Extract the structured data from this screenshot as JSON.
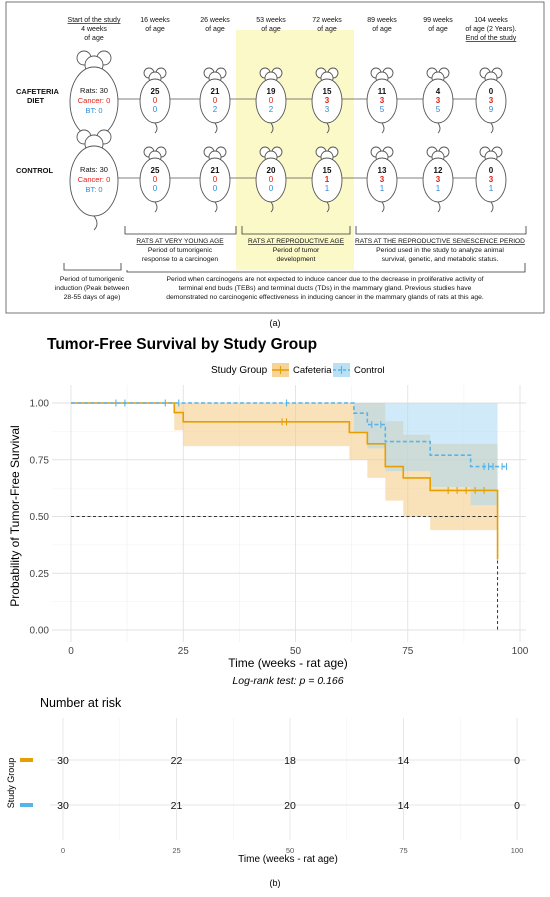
{
  "panel_a": {
    "caption": "(a)",
    "timeline": [
      {
        "l1": "Start of the study",
        "l2": "4 weeks",
        "l3": "of age",
        "u1": true,
        "u3": false
      },
      {
        "l1": "16 weeks",
        "l2": "of age",
        "l3": "",
        "u1": false,
        "u3": false
      },
      {
        "l1": "26 weeks",
        "l2": "of age",
        "l3": "",
        "u1": false,
        "u3": false
      },
      {
        "l1": "53 weeks",
        "l2": "of age",
        "l3": "",
        "u1": false,
        "u3": false
      },
      {
        "l1": "72 weeks",
        "l2": "of age",
        "l3": "",
        "u1": false,
        "u3": false
      },
      {
        "l1": "89 weeks",
        "l2": "of age",
        "l3": "",
        "u1": false,
        "u3": false
      },
      {
        "l1": "99 weeks",
        "l2": "of age",
        "l3": "",
        "u1": false,
        "u3": false
      },
      {
        "l1": "104 weeks",
        "l2": "of age (2 Years).",
        "l3": "End of the study",
        "u1": false,
        "u3": true
      }
    ],
    "groups": [
      {
        "label_l1": "CAFETERIA",
        "label_l2": "DIET",
        "start": {
          "rats": "Rats: 30",
          "cancer": "Cancer: 0",
          "bt": "BT: 0"
        },
        "points": [
          {
            "rats": "25",
            "cancer": "0",
            "bt": "0"
          },
          {
            "rats": "21",
            "cancer": "0",
            "bt": "2"
          },
          {
            "rats": "19",
            "cancer": "0",
            "bt": "2"
          },
          {
            "rats": "15",
            "cancer": "3",
            "bt": "3"
          },
          {
            "rats": "11",
            "cancer": "3",
            "bt": "5"
          },
          {
            "rats": "4",
            "cancer": "3",
            "bt": "5"
          },
          {
            "rats": "0",
            "cancer": "3",
            "bt": "9"
          }
        ]
      },
      {
        "label_l1": "CONTROL",
        "label_l2": "",
        "start": {
          "rats": "Rats: 30",
          "cancer": "Cancer: 0",
          "bt": "BT: 0"
        },
        "points": [
          {
            "rats": "25",
            "cancer": "0",
            "bt": "0"
          },
          {
            "rats": "21",
            "cancer": "0",
            "bt": "0"
          },
          {
            "rats": "20",
            "cancer": "0",
            "bt": "0"
          },
          {
            "rats": "15",
            "cancer": "1",
            "bt": "1"
          },
          {
            "rats": "13",
            "cancer": "3",
            "bt": "1"
          },
          {
            "rats": "12",
            "cancer": "3",
            "bt": "1"
          },
          {
            "rats": "0",
            "cancer": "3",
            "bt": "1"
          }
        ]
      }
    ],
    "periods": [
      {
        "title": "RATS AT VERY YOUNG AGE",
        "l1": "Period of tumorigenic",
        "l2": "response to a carcinogen"
      },
      {
        "title": "RATS AT REPRODUCTIVE AGE",
        "l1": "Period of tumor",
        "l2": "development"
      },
      {
        "title": "RATS AT THE REPRODUCTIVE SENESCENCE PERIOD",
        "l1": "Period used in the study to analyze animal",
        "l2": "survival, genetic, and metabolic status."
      }
    ],
    "notes": {
      "left": [
        "Period of tumorigenic",
        "induction (Peak between",
        "28-55 days of age)"
      ],
      "right": [
        "Period when carcinogens are not expected to induce cancer due to the decrease in proliferative activity of",
        "terminal end buds (TEBs) and terminal ducts (TDs) in the mammary gland. Previous studies have",
        "demonstrated no carcinogenic effectiveness in inducing cancer in the mammary glands of rats at this age."
      ]
    }
  },
  "chart_data": [
    {
      "type": "line",
      "title": "Tumor-Free Survival by Study Group",
      "xlabel": "Time (weeks - rat age)",
      "ylabel": "Probability of Tumor-Free Survival",
      "xlim": [
        0,
        100
      ],
      "ylim": [
        0,
        1
      ],
      "xticks": [
        "0",
        "25",
        "50",
        "75",
        "100"
      ],
      "yticks": [
        "0.00",
        "0.25",
        "0.50",
        "0.75",
        "1.00"
      ],
      "legend_title": "Study Group",
      "legend_position": "top",
      "annotation": "Log-rank test: p = 0.166",
      "median_line": 0.5,
      "series": [
        {
          "name": "Cafeteria",
          "color": "#E69F00",
          "band_color": "#F4C97F",
          "steps": [
            [
              0,
              1
            ],
            [
              23,
              1
            ],
            [
              23,
              0.958
            ],
            [
              25,
              0.958
            ],
            [
              25,
              0.917
            ],
            [
              62,
              0.917
            ],
            [
              62,
              0.87
            ],
            [
              66,
              0.87
            ],
            [
              66,
              0.82
            ],
            [
              70,
              0.82
            ],
            [
              70,
              0.72
            ],
            [
              74,
              0.72
            ],
            [
              74,
              0.67
            ],
            [
              80,
              0.67
            ],
            [
              80,
              0.615
            ],
            [
              95,
              0.615
            ],
            [
              95,
              0.31
            ]
          ],
          "upper": [
            [
              0,
              1
            ],
            [
              23,
              1
            ],
            [
              23,
              1
            ],
            [
              25,
              1
            ],
            [
              25,
              1
            ],
            [
              62,
              1
            ],
            [
              62,
              1
            ],
            [
              70,
              1
            ],
            [
              70,
              0.92
            ],
            [
              74,
              0.92
            ],
            [
              74,
              0.86
            ],
            [
              80,
              0.86
            ],
            [
              80,
              0.82
            ],
            [
              95,
              0.82
            ],
            [
              95,
              0.8
            ]
          ],
          "lower": [
            [
              0,
              1
            ],
            [
              23,
              1
            ],
            [
              23,
              0.88
            ],
            [
              25,
              0.88
            ],
            [
              25,
              0.81
            ],
            [
              62,
              0.81
            ],
            [
              62,
              0.75
            ],
            [
              66,
              0.75
            ],
            [
              66,
              0.67
            ],
            [
              70,
              0.67
            ],
            [
              70,
              0.57
            ],
            [
              74,
              0.57
            ],
            [
              74,
              0.5
            ],
            [
              80,
              0.5
            ],
            [
              80,
              0.44
            ],
            [
              95,
              0.44
            ],
            [
              95,
              0.31
            ]
          ],
          "censors": [
            [
              47,
              0.917
            ],
            [
              48,
              0.917
            ],
            [
              84,
              0.615
            ],
            [
              86,
              0.615
            ],
            [
              88,
              0.615
            ],
            [
              90,
              0.615
            ],
            [
              92,
              0.615
            ]
          ]
        },
        {
          "name": "Control",
          "color": "#56B4E9",
          "band_color": "#A9D8F4",
          "steps": [
            [
              0,
              1
            ],
            [
              63,
              1
            ],
            [
              63,
              0.955
            ],
            [
              66,
              0.955
            ],
            [
              66,
              0.905
            ],
            [
              70,
              0.905
            ],
            [
              70,
              0.83
            ],
            [
              80,
              0.83
            ],
            [
              80,
              0.77
            ],
            [
              89,
              0.77
            ],
            [
              89,
              0.72
            ],
            [
              97,
              0.72
            ]
          ],
          "upper": [
            [
              0,
              1
            ],
            [
              63,
              1
            ],
            [
              63,
              1
            ],
            [
              95,
              1
            ],
            [
              95,
              0.965
            ]
          ],
          "lower": [
            [
              0,
              1
            ],
            [
              63,
              1
            ],
            [
              63,
              0.87
            ],
            [
              66,
              0.87
            ],
            [
              66,
              0.8
            ],
            [
              70,
              0.8
            ],
            [
              70,
              0.7
            ],
            [
              80,
              0.7
            ],
            [
              80,
              0.63
            ],
            [
              89,
              0.63
            ],
            [
              89,
              0.55
            ],
            [
              95,
              0.55
            ]
          ],
          "censors": [
            [
              10,
              1
            ],
            [
              12,
              1
            ],
            [
              21,
              1
            ],
            [
              24,
              1
            ],
            [
              48,
              1
            ],
            [
              67,
              0.905
            ],
            [
              69,
              0.905
            ],
            [
              92,
              0.72
            ],
            [
              93,
              0.72
            ],
            [
              94,
              0.72
            ],
            [
              96,
              0.72
            ],
            [
              97,
              0.72
            ]
          ]
        }
      ],
      "medians_x": [
        95,
        95
      ]
    },
    {
      "type": "table",
      "title": "Number at risk",
      "xlabel": "Time (weeks - rat age)",
      "ylabel": "Study Group",
      "x": [
        0,
        25,
        50,
        75,
        100
      ],
      "xticks": [
        "0",
        "25",
        "50",
        "75",
        "100"
      ],
      "series": [
        {
          "name": "",
          "color": "#E69F00",
          "values": [
            "30",
            "22",
            "18",
            "14",
            "0"
          ]
        },
        {
          "name": "",
          "color": "#56B4E9",
          "values": [
            "30",
            "21",
            "20",
            "14",
            "0"
          ]
        }
      ]
    }
  ],
  "panel_b_caption": "(b)"
}
